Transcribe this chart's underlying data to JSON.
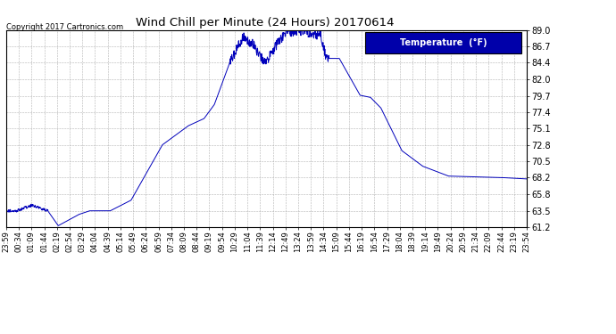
{
  "title": "Wind Chill per Minute (24 Hours) 20170614",
  "copyright_text": "Copyright 2017 Cartronics.com",
  "legend_label": "Temperature  (°F)",
  "line_color": "#0000bb",
  "background_color": "#ffffff",
  "grid_color": "#aaaaaa",
  "ylim": [
    61.2,
    89.0
  ],
  "yticks": [
    61.2,
    63.5,
    65.8,
    68.2,
    70.5,
    72.8,
    75.1,
    77.4,
    79.7,
    82.0,
    84.4,
    86.7,
    89.0
  ],
  "xtick_labels": [
    "23:59",
    "00:34",
    "01:09",
    "01:44",
    "02:19",
    "02:54",
    "03:29",
    "04:04",
    "04:39",
    "05:14",
    "05:49",
    "06:24",
    "06:59",
    "07:34",
    "08:09",
    "08:44",
    "09:19",
    "09:54",
    "10:29",
    "11:04",
    "11:39",
    "12:14",
    "12:49",
    "13:24",
    "13:59",
    "14:34",
    "15:09",
    "15:44",
    "16:19",
    "16:54",
    "17:29",
    "18:04",
    "18:39",
    "19:14",
    "19:49",
    "20:24",
    "20:59",
    "21:34",
    "22:09",
    "22:44",
    "23:19",
    "23:54"
  ],
  "num_points": 1440,
  "profile_x": [
    0.0,
    0.02,
    0.05,
    0.08,
    0.1,
    0.14,
    0.16,
    0.2,
    0.24,
    0.3,
    0.35,
    0.38,
    0.4,
    0.43,
    0.455,
    0.465,
    0.475,
    0.485,
    0.5,
    0.52,
    0.535,
    0.545,
    0.555,
    0.565,
    0.575,
    0.585,
    0.595,
    0.605,
    0.615,
    0.64,
    0.68,
    0.7,
    0.72,
    0.76,
    0.8,
    0.85,
    0.9,
    0.95,
    1.0
  ],
  "profile_y": [
    63.5,
    63.5,
    64.3,
    63.5,
    61.4,
    63.0,
    63.5,
    63.5,
    65.0,
    72.8,
    75.5,
    76.5,
    78.5,
    84.5,
    88.0,
    87.5,
    87.0,
    85.5,
    84.5,
    87.0,
    88.3,
    88.7,
    88.9,
    88.9,
    88.8,
    88.6,
    88.4,
    88.2,
    85.0,
    85.0,
    79.8,
    79.5,
    78.0,
    72.0,
    69.8,
    68.4,
    68.3,
    68.2,
    68.0
  ]
}
